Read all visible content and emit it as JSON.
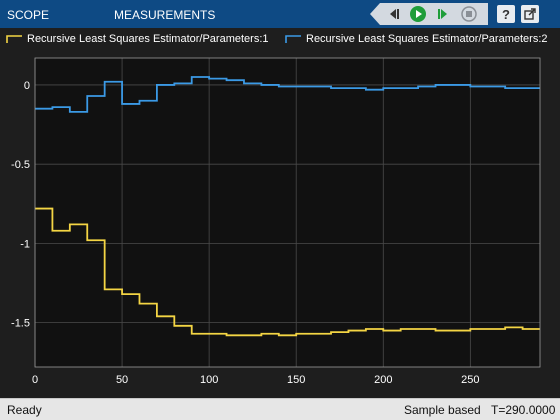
{
  "toolstrip": {
    "tabs": [
      "SCOPE",
      "MEASUREMENTS"
    ],
    "icons": [
      "step-back-icon",
      "run-icon",
      "step-forward-icon",
      "stop-icon",
      "help-icon",
      "undock-icon"
    ],
    "help_glyph": "?",
    "accent": "#0e4a84"
  },
  "legend": {
    "series": [
      {
        "name": "Recursive Least Squares Estimator/Parameters:1",
        "color": "#f4d544"
      },
      {
        "name": "Recursive Least Squares Estimator/Parameters:2",
        "color": "#3b9ae6"
      }
    ]
  },
  "status": {
    "left": "Ready",
    "mode": "Sample based",
    "time": "T=290.0000"
  },
  "chart_data": {
    "type": "line",
    "step": true,
    "grid": true,
    "background": "#111111",
    "xlim": [
      0,
      290
    ],
    "ylim": [
      -1.78,
      0.17
    ],
    "xticks": [
      0,
      50,
      100,
      150,
      200,
      250
    ],
    "yticks": [
      0,
      -0.5,
      -1,
      -1.5
    ],
    "x": [
      0,
      10,
      20,
      30,
      40,
      50,
      60,
      70,
      80,
      90,
      100,
      110,
      120,
      130,
      140,
      150,
      160,
      170,
      180,
      190,
      200,
      210,
      220,
      230,
      240,
      250,
      260,
      270,
      280,
      290
    ],
    "series": [
      {
        "name": "Recursive Least Squares Estimator/Parameters:1",
        "color": "#f4d544",
        "values": [
          -0.78,
          -0.92,
          -0.88,
          -0.98,
          -1.29,
          -1.32,
          -1.38,
          -1.46,
          -1.52,
          -1.57,
          -1.57,
          -1.58,
          -1.58,
          -1.57,
          -1.58,
          -1.57,
          -1.57,
          -1.56,
          -1.55,
          -1.54,
          -1.55,
          -1.54,
          -1.54,
          -1.55,
          -1.55,
          -1.54,
          -1.54,
          -1.53,
          -1.54,
          -1.54
        ]
      },
      {
        "name": "Recursive Least Squares Estimator/Parameters:2",
        "color": "#3b9ae6",
        "values": [
          -0.15,
          -0.14,
          -0.17,
          -0.07,
          0.02,
          -0.12,
          -0.1,
          0.0,
          0.01,
          0.05,
          0.04,
          0.03,
          0.01,
          0.0,
          -0.01,
          -0.01,
          -0.01,
          -0.02,
          -0.02,
          -0.03,
          -0.02,
          -0.02,
          -0.01,
          0.0,
          0.0,
          -0.01,
          -0.01,
          -0.02,
          -0.02,
          -0.02
        ]
      }
    ]
  }
}
